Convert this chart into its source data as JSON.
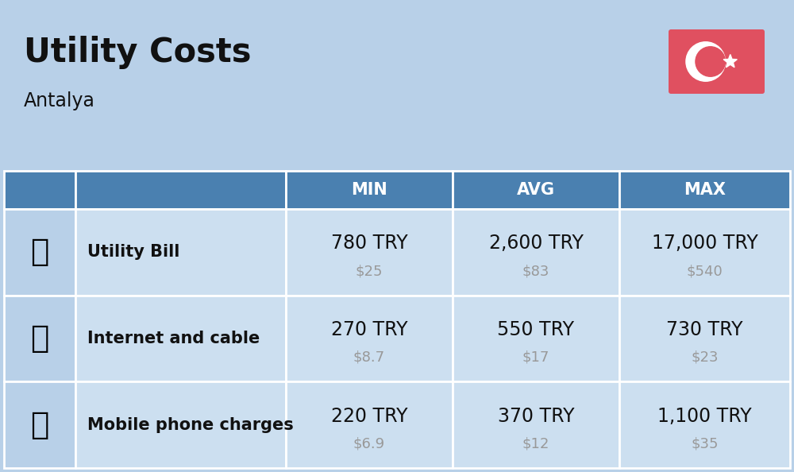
{
  "title": "Utility Costs",
  "subtitle": "Antalya",
  "background_color": "#b8d0e8",
  "header_color": "#4a80b0",
  "header_text_color": "#ffffff",
  "row_color": "#ccdff0",
  "icon_col_color": "#b8d0e8",
  "flag_bg": "#e05060",
  "columns": [
    "MIN",
    "AVG",
    "MAX"
  ],
  "rows": [
    {
      "label": "Utility Bill",
      "min_try": "780 TRY",
      "min_usd": "$25",
      "avg_try": "2,600 TRY",
      "avg_usd": "$83",
      "max_try": "17,000 TRY",
      "max_usd": "$540"
    },
    {
      "label": "Internet and cable",
      "min_try": "270 TRY",
      "min_usd": "$8.7",
      "avg_try": "550 TRY",
      "avg_usd": "$17",
      "max_try": "730 TRY",
      "max_usd": "$23"
    },
    {
      "label": "Mobile phone charges",
      "min_try": "220 TRY",
      "min_usd": "$6.9",
      "avg_try": "370 TRY",
      "avg_usd": "$12",
      "max_try": "1,100 TRY",
      "max_usd": "$35"
    }
  ],
  "title_fontsize": 30,
  "subtitle_fontsize": 17,
  "header_fontsize": 15,
  "cell_fontsize_try": 17,
  "cell_fontsize_usd": 13,
  "label_fontsize": 15,
  "text_color_dark": "#111111",
  "text_color_usd": "#999999",
  "border_color": "#ffffff",
  "fig_width": 10.0,
  "fig_height": 5.94,
  "dpi": 100
}
